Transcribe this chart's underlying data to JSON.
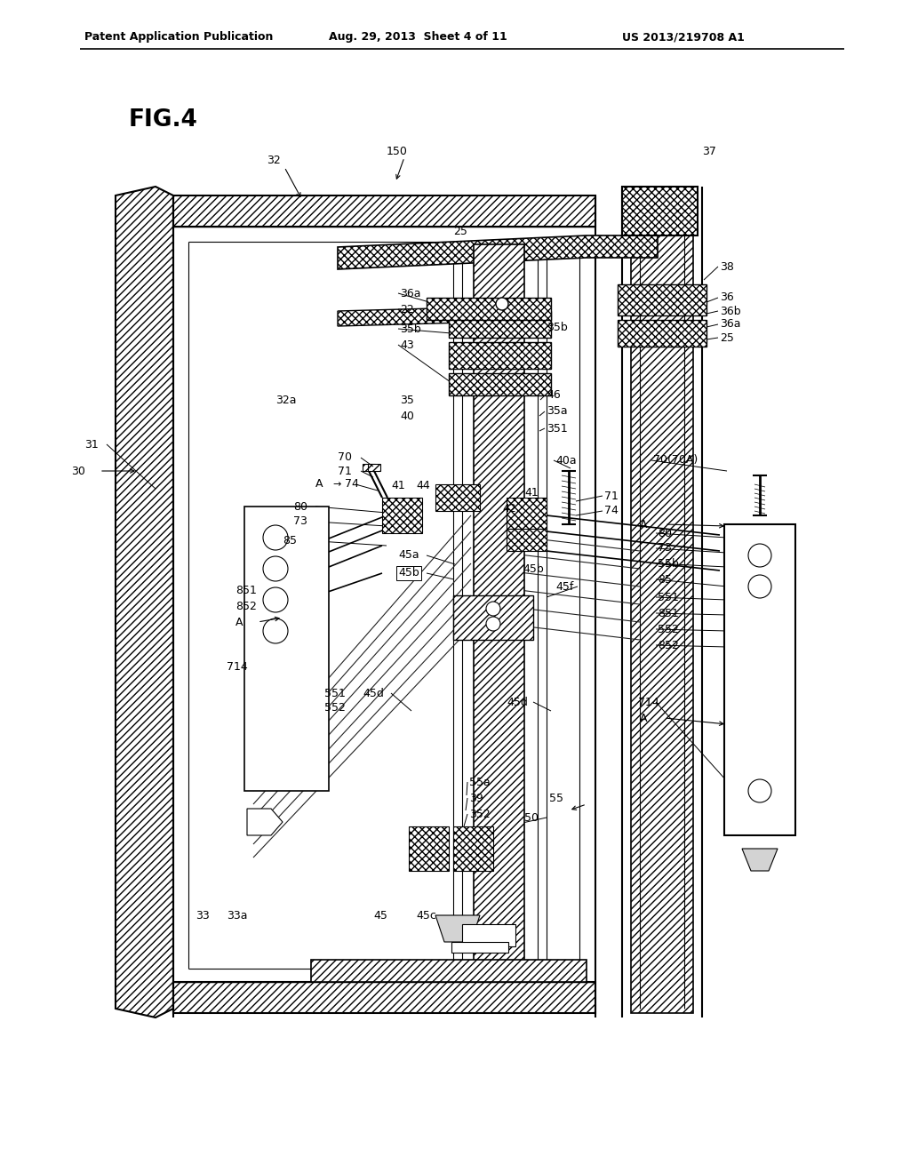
{
  "header_left": "Patent Application Publication",
  "header_mid": "Aug. 29, 2013  Sheet 4 of 11",
  "header_right": "US 2013/219708 A1",
  "fig_label": "FIG.4",
  "background": "#ffffff"
}
